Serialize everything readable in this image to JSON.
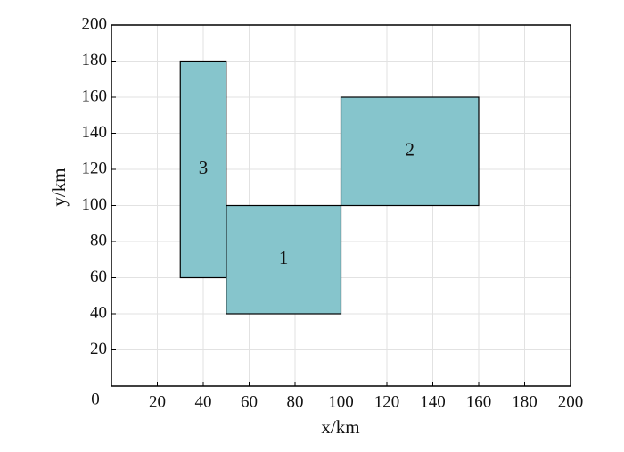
{
  "chart_data": {
    "type": "rect",
    "xlabel": "x/km",
    "ylabel": "y/km",
    "xlim": [
      0,
      200
    ],
    "ylim": [
      0,
      200
    ],
    "xticks": [
      0,
      20,
      40,
      60,
      80,
      100,
      120,
      140,
      160,
      180,
      200
    ],
    "yticks": [
      20,
      40,
      60,
      80,
      100,
      120,
      140,
      160,
      180,
      200
    ],
    "grid": true,
    "color": "#86c5cc",
    "rects": [
      {
        "label": "1",
        "x": [
          50,
          100
        ],
        "y": [
          40,
          100
        ]
      },
      {
        "label": "2",
        "x": [
          100,
          160
        ],
        "y": [
          100,
          160
        ]
      },
      {
        "label": "3",
        "x": [
          30,
          50
        ],
        "y": [
          60,
          180
        ]
      }
    ]
  }
}
